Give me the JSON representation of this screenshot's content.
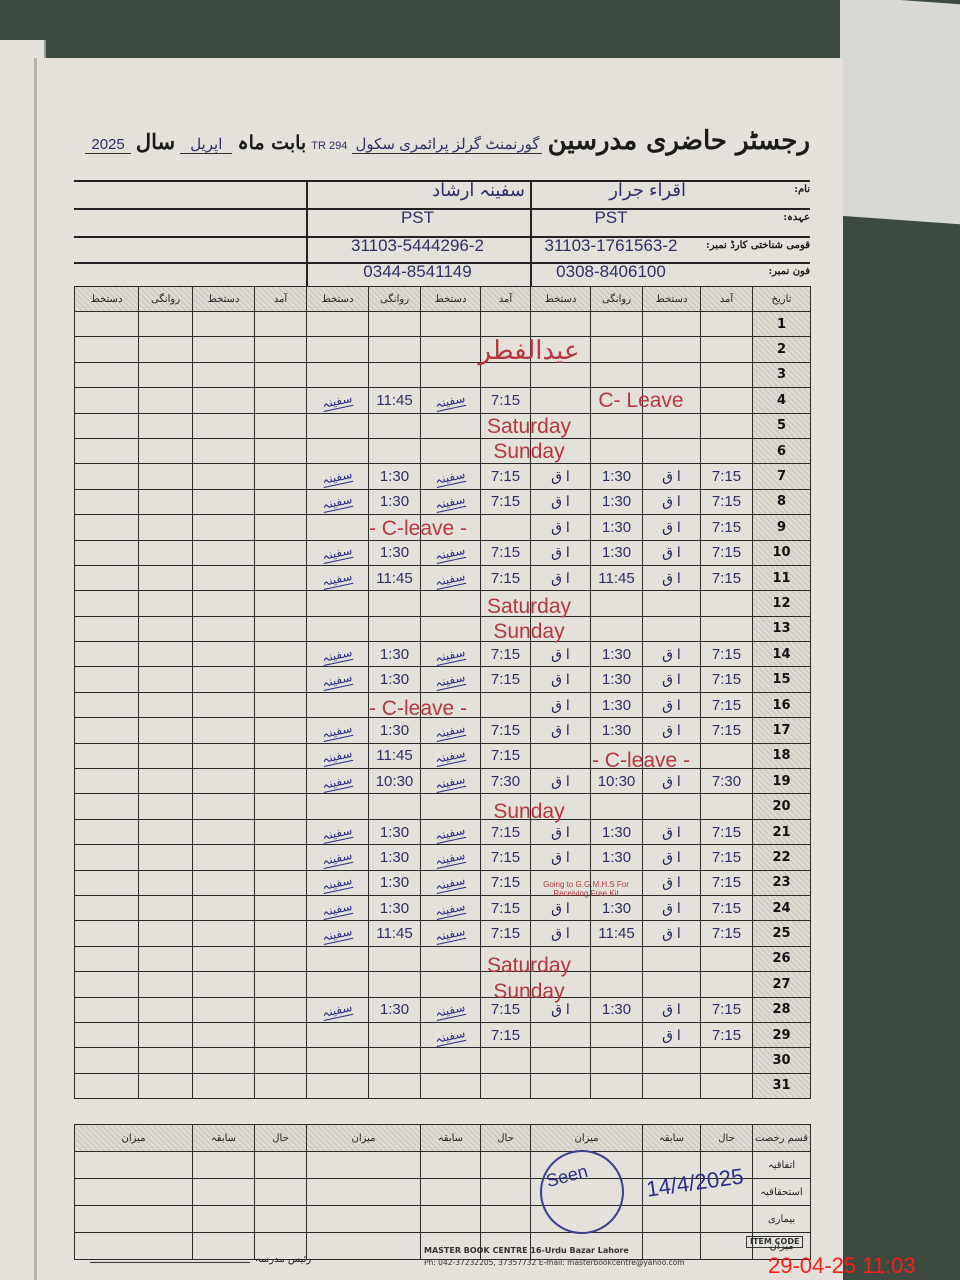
{
  "header": {
    "title_printed": "رجسٹر حاضری مدرسین",
    "school_handwritten": "گورنمنٹ گرلز پرائمری سکول",
    "school_number": "294 TR",
    "month_label": "بابت ماہ",
    "month_value": "اپریل",
    "year_label": "سال",
    "year_value": "2025"
  },
  "info_labels": {
    "name": "نام:",
    "designation": "عہدہ:",
    "cnic": "قومی شناختی کارڈ نمبر:",
    "phone": "فون نمبر:"
  },
  "teachers": [
    {
      "name": "اقراء جرار",
      "designation": "PST",
      "cnic": "31103-1761563-2",
      "phone": "0308-8406100"
    },
    {
      "name": "سفینہ ارشاد",
      "designation": "PST",
      "cnic": "31103-5444296-2",
      "phone": "0344-8541149"
    }
  ],
  "columns": {
    "date": "تاریخ",
    "arrival": "آمد",
    "signature": "دستخط",
    "departure": "روانگی"
  },
  "signatures": {
    "teacher_1": "ا ق",
    "teacher_2": "سفینہ"
  },
  "rows": [
    {
      "day": "1"
    },
    {
      "day": "2"
    },
    {
      "day": "3"
    },
    {
      "day": "4",
      "t2": {
        "in": "7:15",
        "out": "11:45"
      }
    },
    {
      "day": "5"
    },
    {
      "day": "6"
    },
    {
      "day": "7",
      "t1": {
        "in": "7:15",
        "out": "1:30"
      },
      "t2": {
        "in": "7:15",
        "out": "1:30"
      }
    },
    {
      "day": "8",
      "t1": {
        "in": "7:15",
        "out": "1:30"
      },
      "t2": {
        "in": "7:15",
        "out": "1:30"
      }
    },
    {
      "day": "9",
      "t1": {
        "in": "7:15",
        "out": "1:30"
      }
    },
    {
      "day": "10",
      "t1": {
        "in": "7:15",
        "out": "1:30"
      },
      "t2": {
        "in": "7:15",
        "out": "1:30"
      }
    },
    {
      "day": "11",
      "t1": {
        "in": "7:15",
        "out": "11:45"
      },
      "t2": {
        "in": "7:15",
        "out": "11:45"
      }
    },
    {
      "day": "12"
    },
    {
      "day": "13"
    },
    {
      "day": "14",
      "t1": {
        "in": "7:15",
        "out": "1:30"
      },
      "t2": {
        "in": "7:15",
        "out": "1:30"
      }
    },
    {
      "day": "15",
      "t1": {
        "in": "7:15",
        "out": "1:30"
      },
      "t2": {
        "in": "7:15",
        "out": "1:30"
      }
    },
    {
      "day": "16",
      "t1": {
        "in": "7:15",
        "out": "1:30"
      }
    },
    {
      "day": "17",
      "t1": {
        "in": "7:15",
        "out": "1:30"
      },
      "t2": {
        "in": "7:15",
        "out": "1:30"
      }
    },
    {
      "day": "18",
      "t2": {
        "in": "7:15",
        "out": "11:45"
      }
    },
    {
      "day": "19",
      "t1": {
        "in": "7:30",
        "out": "10:30"
      },
      "t2": {
        "in": "7:30",
        "out": "10:30"
      }
    },
    {
      "day": "20"
    },
    {
      "day": "21",
      "t1": {
        "in": "7:15",
        "out": "1:30"
      },
      "t2": {
        "in": "7:15",
        "out": "1:30"
      }
    },
    {
      "day": "22",
      "t1": {
        "in": "7:15",
        "out": "1:30"
      },
      "t2": {
        "in": "7:15",
        "out": "1:30"
      }
    },
    {
      "day": "23",
      "t1": {
        "in": "7:15"
      },
      "t2": {
        "in": "7:15",
        "out": "1:30"
      }
    },
    {
      "day": "24",
      "t1": {
        "in": "7:15",
        "out": "1:30"
      },
      "t2": {
        "in": "7:15",
        "out": "1:30"
      }
    },
    {
      "day": "25",
      "t1": {
        "in": "7:15",
        "out": "11:45"
      },
      "t2": {
        "in": "7:15",
        "out": "11:45"
      }
    },
    {
      "day": "26"
    },
    {
      "day": "27"
    },
    {
      "day": "28",
      "t1": {
        "in": "7:15",
        "out": "1:30"
      },
      "t2": {
        "in": "7:15",
        "out": "1:30"
      }
    },
    {
      "day": "29",
      "t1": {
        "in": "7:15"
      },
      "t2": {
        "in": "7:15"
      }
    },
    {
      "day": "30"
    },
    {
      "day": "31"
    }
  ],
  "notes": [
    {
      "text": "عیدالفطر",
      "from_day": 1,
      "to_day": 3,
      "scope": "both"
    },
    {
      "text": "C- Leave",
      "from_day": 4,
      "to_day": 4,
      "scope": "teacher_1"
    },
    {
      "text": "Saturday",
      "from_day": 5,
      "to_day": 5,
      "scope": "both"
    },
    {
      "text": "Sunday",
      "from_day": 6,
      "to_day": 6,
      "scope": "both"
    },
    {
      "text": "- C-leave -",
      "from_day": 9,
      "to_day": 9,
      "scope": "teacher_2"
    },
    {
      "text": "Saturday",
      "from_day": 12,
      "to_day": 12,
      "scope": "both"
    },
    {
      "text": "Sunday",
      "from_day": 13,
      "to_day": 13,
      "scope": "both"
    },
    {
      "text": "- C-leave -",
      "from_day": 16,
      "to_day": 16,
      "scope": "teacher_2"
    },
    {
      "text": "- C-leave -",
      "from_day": 18,
      "to_day": 18,
      "scope": "teacher_1"
    },
    {
      "text": "Sunday",
      "from_day": 20,
      "to_day": 20,
      "scope": "both"
    },
    {
      "text": "Going to G.G.M.H.S For Receiving Free Kit",
      "from_day": 23,
      "to_day": 23,
      "scope": "teacher_1_departure"
    },
    {
      "text": "Saturday",
      "from_day": 26,
      "to_day": 26,
      "scope": "both"
    },
    {
      "text": "Sunday",
      "from_day": 27,
      "to_day": 27,
      "scope": "both"
    }
  ],
  "summary": {
    "leave_type_header": "قسم رخصت",
    "current": "حال",
    "previous": "سابقہ",
    "total": "میزان",
    "row_labels": [
      "اتفاقیہ",
      "استحقاقیہ",
      "بیماری",
      "میزان"
    ]
  },
  "approval": {
    "seen": "Seen",
    "date": "14/4/2025"
  },
  "footer": {
    "head_label": "رئیس مدرسہ",
    "publisher_line1": "MASTER BOOK CENTRE 16-Urdu Bazar Lahore",
    "publisher_line2": "Ph: 042-37232205, 37357732 E-mail: masterbookcentre@yahoo.com",
    "item_code": "ITEM CODE"
  },
  "timestamp": "29-04-25 11:03",
  "colors": {
    "ink_blue": "#2e2f66",
    "ink_red": "#b5383f",
    "timestamp_red": "#ff1a1a",
    "paper": "#e3e1da"
  }
}
